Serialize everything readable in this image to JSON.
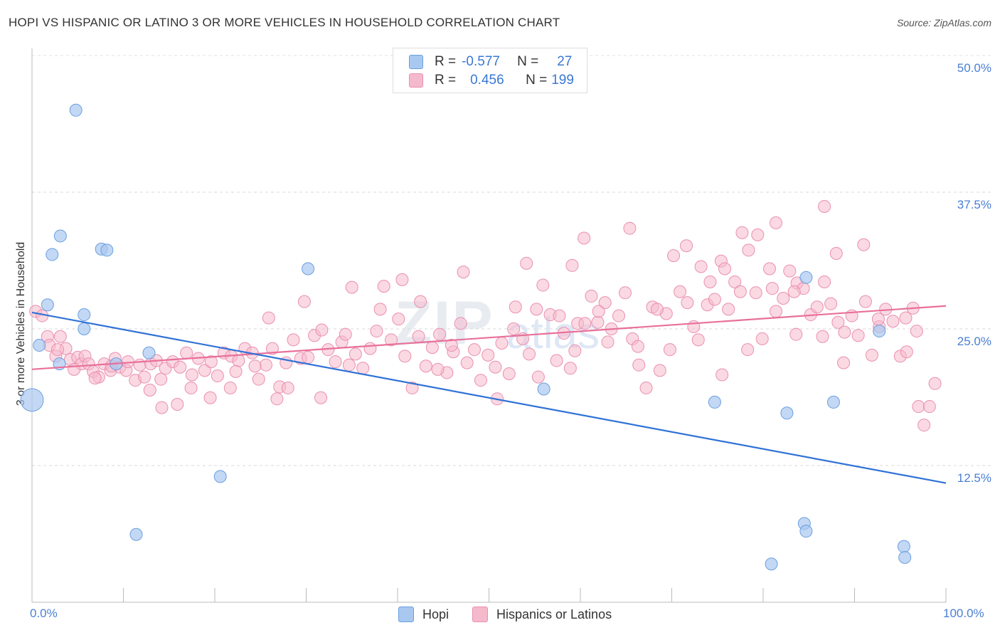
{
  "title": "HOPI VS HISPANIC OR LATINO 3 OR MORE VEHICLES IN HOUSEHOLD CORRELATION CHART",
  "source": "Source: ZipAtlas.com",
  "watermark": {
    "zip": "ZIP",
    "atlas": "atlas"
  },
  "legend": {
    "r_label": "R =",
    "n_label": "N =",
    "hopi": {
      "r": "-0.577",
      "n": "27"
    },
    "hispanic": {
      "r": "0.456",
      "n": "199"
    }
  },
  "colors": {
    "hopi_fill": "#a9c8f0",
    "hopi_stroke": "#6a9fe0",
    "hopi_line": "#2f72d6",
    "hisp_fill": "#f5b9cc",
    "hisp_stroke": "#ea8fb0",
    "hisp_line": "#e8709a"
  },
  "chart_data": {
    "type": "scatter",
    "xlabel": "",
    "ylabel": "3 or more Vehicles in Household",
    "xlim": [
      0,
      100
    ],
    "ylim": [
      0,
      50
    ],
    "y_ticks": [
      "50.0%",
      "37.5%",
      "25.0%",
      "12.5%"
    ],
    "y_tick_values": [
      50,
      37.5,
      25,
      12.5
    ],
    "x_tick_labels": [
      "0.0%",
      "100.0%"
    ],
    "series": [
      {
        "name": "Hopi",
        "trend": {
          "x": [
            0,
            100
          ],
          "y": [
            26.5,
            10.9
          ]
        },
        "points": [
          [
            0.0,
            18.5,
            "big"
          ],
          [
            0.8,
            23.5
          ],
          [
            1.7,
            27.2
          ],
          [
            3.1,
            33.5
          ],
          [
            2.2,
            31.8
          ],
          [
            4.8,
            45.0
          ],
          [
            5.7,
            26.3
          ],
          [
            5.7,
            25.0
          ],
          [
            7.6,
            32.3
          ],
          [
            8.2,
            32.2
          ],
          [
            3.0,
            21.8
          ],
          [
            9.2,
            21.8
          ],
          [
            12.8,
            22.8
          ],
          [
            30.2,
            30.5
          ],
          [
            20.6,
            11.5
          ],
          [
            11.4,
            6.2
          ],
          [
            56.0,
            19.5
          ],
          [
            84.7,
            29.7
          ],
          [
            87.7,
            18.3
          ],
          [
            92.7,
            24.8
          ],
          [
            82.6,
            17.3
          ],
          [
            84.5,
            7.2
          ],
          [
            80.9,
            3.5
          ],
          [
            84.7,
            6.5
          ],
          [
            95.4,
            5.1
          ],
          [
            95.5,
            4.1
          ],
          [
            74.7,
            18.3
          ]
        ]
      },
      {
        "name": "Hispanics or Latinos",
        "trend": {
          "x": [
            0,
            100
          ],
          "y": [
            21.3,
            27.1
          ]
        },
        "points": [
          [
            0.4,
            26.6
          ],
          [
            1.1,
            26.2
          ],
          [
            1.7,
            24.3
          ],
          [
            1.9,
            23.5
          ],
          [
            2.6,
            22.5
          ],
          [
            3.1,
            24.3
          ],
          [
            3.7,
            23.2
          ],
          [
            4.2,
            22.2
          ],
          [
            5.0,
            22.4
          ],
          [
            5.4,
            21.8
          ],
          [
            5.8,
            22.5
          ],
          [
            6.2,
            21.8
          ],
          [
            6.7,
            21.1
          ],
          [
            7.3,
            20.6
          ],
          [
            7.9,
            21.8
          ],
          [
            8.6,
            21.2
          ],
          [
            9.1,
            22.3
          ],
          [
            9.6,
            21.5
          ],
          [
            10.3,
            21.2
          ],
          [
            11.3,
            20.3
          ],
          [
            11.8,
            21.7
          ],
          [
            12.3,
            20.6
          ],
          [
            13.0,
            21.8
          ],
          [
            13.6,
            22.1
          ],
          [
            14.1,
            20.4
          ],
          [
            14.6,
            21.4
          ],
          [
            15.4,
            22.0
          ],
          [
            16.2,
            21.5
          ],
          [
            16.9,
            22.8
          ],
          [
            17.5,
            20.8
          ],
          [
            18.2,
            22.3
          ],
          [
            18.9,
            21.2
          ],
          [
            19.6,
            22.0
          ],
          [
            20.3,
            20.7
          ],
          [
            21.0,
            22.8
          ],
          [
            21.8,
            22.5
          ],
          [
            22.6,
            22.1
          ],
          [
            23.3,
            23.2
          ],
          [
            24.1,
            22.8
          ],
          [
            24.8,
            20.4
          ],
          [
            25.6,
            21.7
          ],
          [
            26.3,
            23.2
          ],
          [
            27.1,
            19.7
          ],
          [
            27.8,
            21.9
          ],
          [
            28.6,
            24.0
          ],
          [
            29.4,
            22.3
          ],
          [
            30.2,
            22.4
          ],
          [
            30.9,
            24.4
          ],
          [
            31.7,
            24.9
          ],
          [
            32.4,
            23.1
          ],
          [
            33.2,
            22.0
          ],
          [
            33.9,
            23.8
          ],
          [
            34.7,
            21.7
          ],
          [
            35.4,
            22.7
          ],
          [
            36.2,
            21.4
          ],
          [
            37.0,
            23.2
          ],
          [
            37.7,
            24.8
          ],
          [
            38.5,
            28.9
          ],
          [
            39.3,
            24.0
          ],
          [
            40.1,
            25.9
          ],
          [
            40.8,
            22.5
          ],
          [
            41.6,
            19.6
          ],
          [
            42.3,
            24.3
          ],
          [
            43.1,
            21.6
          ],
          [
            43.8,
            23.3
          ],
          [
            44.6,
            24.5
          ],
          [
            45.4,
            21.0
          ],
          [
            46.1,
            22.9
          ],
          [
            46.9,
            25.5
          ],
          [
            47.6,
            21.9
          ],
          [
            48.4,
            23.1
          ],
          [
            49.1,
            20.3
          ],
          [
            49.9,
            22.6
          ],
          [
            50.7,
            21.5
          ],
          [
            51.4,
            23.7
          ],
          [
            52.2,
            20.9
          ],
          [
            52.9,
            27.0
          ],
          [
            53.7,
            24.1
          ],
          [
            54.4,
            22.7
          ],
          [
            55.2,
            26.8
          ],
          [
            55.9,
            29.0
          ],
          [
            56.7,
            26.3
          ],
          [
            57.4,
            22.1
          ],
          [
            58.2,
            24.6
          ],
          [
            58.9,
            21.4
          ],
          [
            59.7,
            25.5
          ],
          [
            60.4,
            33.3
          ],
          [
            61.2,
            28.0
          ],
          [
            61.9,
            25.6
          ],
          [
            62.7,
            27.4
          ],
          [
            63.4,
            25.0
          ],
          [
            64.2,
            26.2
          ],
          [
            64.9,
            28.3
          ],
          [
            65.7,
            24.1
          ],
          [
            66.4,
            21.7
          ],
          [
            67.2,
            19.6
          ],
          [
            67.9,
            27.0
          ],
          [
            68.7,
            21.2
          ],
          [
            69.4,
            26.4
          ],
          [
            70.2,
            31.7
          ],
          [
            70.9,
            28.4
          ],
          [
            71.7,
            27.4
          ],
          [
            72.4,
            25.2
          ],
          [
            73.2,
            30.7
          ],
          [
            73.9,
            27.2
          ],
          [
            74.7,
            27.7
          ],
          [
            75.4,
            31.2
          ],
          [
            76.2,
            26.8
          ],
          [
            76.9,
            29.3
          ],
          [
            77.7,
            33.8
          ],
          [
            78.4,
            32.2
          ],
          [
            79.2,
            28.3
          ],
          [
            79.9,
            24.1
          ],
          [
            80.7,
            30.5
          ],
          [
            81.4,
            26.6
          ],
          [
            82.2,
            27.8
          ],
          [
            82.9,
            30.3
          ],
          [
            83.7,
            29.2
          ],
          [
            84.4,
            28.7
          ],
          [
            85.2,
            26.3
          ],
          [
            85.9,
            27.0
          ],
          [
            86.7,
            29.3
          ],
          [
            87.4,
            27.3
          ],
          [
            88.2,
            25.6
          ],
          [
            88.9,
            24.7
          ],
          [
            89.7,
            26.2
          ],
          [
            90.4,
            24.4
          ],
          [
            91.2,
            27.5
          ],
          [
            91.9,
            22.6
          ],
          [
            92.7,
            25.2
          ],
          [
            93.4,
            26.8
          ],
          [
            94.2,
            25.7
          ],
          [
            95.0,
            22.5
          ],
          [
            95.7,
            22.9
          ],
          [
            96.4,
            26.9
          ],
          [
            97.0,
            17.9
          ],
          [
            97.6,
            16.2
          ],
          [
            98.2,
            17.9
          ],
          [
            98.8,
            20.0
          ],
          [
            91.0,
            32.7
          ],
          [
            86.7,
            36.2
          ],
          [
            81.4,
            34.7
          ],
          [
            79.4,
            33.6
          ],
          [
            71.6,
            32.6
          ],
          [
            75.8,
            30.5
          ],
          [
            65.4,
            34.2
          ],
          [
            59.1,
            30.8
          ],
          [
            54.1,
            31.0
          ],
          [
            47.2,
            30.2
          ],
          [
            40.5,
            29.5
          ],
          [
            35.0,
            28.8
          ],
          [
            29.8,
            27.5
          ],
          [
            25.9,
            26.0
          ],
          [
            24.4,
            21.6
          ],
          [
            21.7,
            19.6
          ],
          [
            19.5,
            18.7
          ],
          [
            15.9,
            18.1
          ],
          [
            14.2,
            17.8
          ],
          [
            26.8,
            18.6
          ],
          [
            31.6,
            18.7
          ],
          [
            44.4,
            21.3
          ],
          [
            50.9,
            18.6
          ],
          [
            55.4,
            20.6
          ],
          [
            59.4,
            23.0
          ],
          [
            63.0,
            23.8
          ],
          [
            66.3,
            23.4
          ],
          [
            69.8,
            23.1
          ],
          [
            72.9,
            24.0
          ],
          [
            75.5,
            20.8
          ],
          [
            78.3,
            23.1
          ],
          [
            81.0,
            28.7
          ],
          [
            83.6,
            24.5
          ],
          [
            86.5,
            24.3
          ],
          [
            88.8,
            21.9
          ],
          [
            92.6,
            25.9
          ],
          [
            96.8,
            24.8
          ],
          [
            34.3,
            24.5
          ],
          [
            28.0,
            19.6
          ],
          [
            22.3,
            21.1
          ],
          [
            17.4,
            19.6
          ],
          [
            12.9,
            19.4
          ],
          [
            8.7,
            21.6
          ],
          [
            6.9,
            20.5
          ],
          [
            4.6,
            21.3
          ],
          [
            2.8,
            23.1
          ],
          [
            10.5,
            22.0
          ],
          [
            42.5,
            27.5
          ],
          [
            38.1,
            26.8
          ],
          [
            52.7,
            25.0
          ],
          [
            57.7,
            26.2
          ],
          [
            62.0,
            26.6
          ],
          [
            68.4,
            26.8
          ],
          [
            74.2,
            29.3
          ],
          [
            77.5,
            28.4
          ],
          [
            95.6,
            26.0
          ],
          [
            60.5,
            25.5
          ],
          [
            88.0,
            31.9
          ],
          [
            83.4,
            28.4
          ],
          [
            45.9,
            23.5
          ]
        ]
      }
    ]
  },
  "bottom_legend": {
    "hopi": "Hopi",
    "hispanic": "Hispanics or Latinos"
  }
}
